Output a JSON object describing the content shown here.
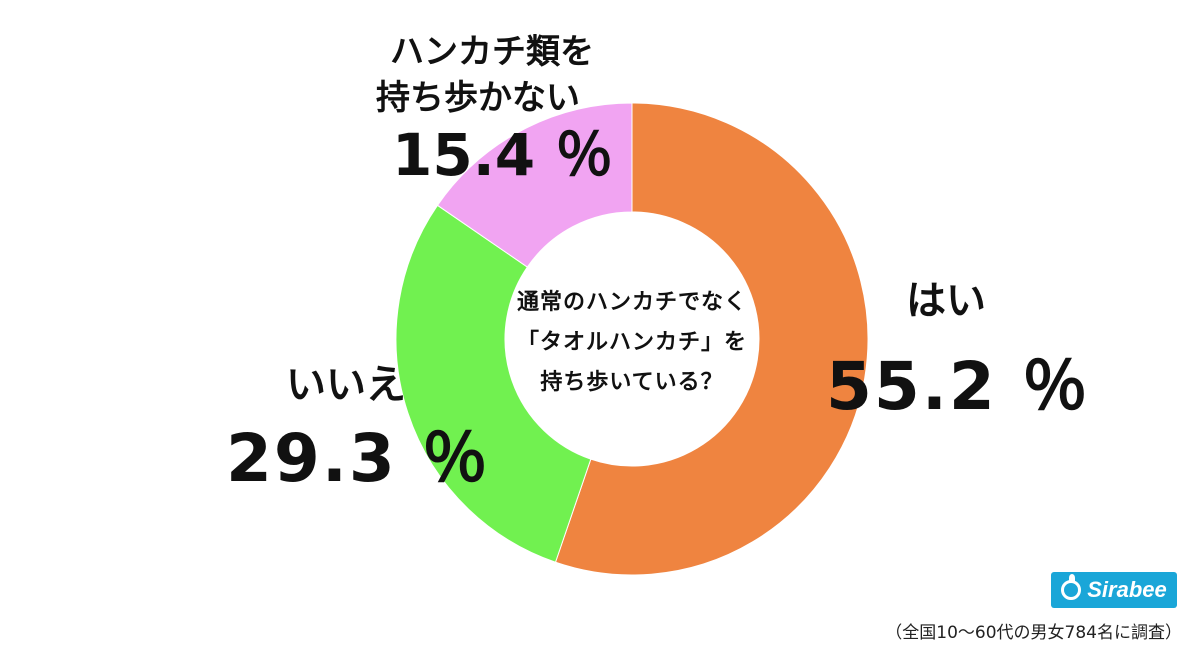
{
  "chart_data": {
    "type": "pie",
    "style": "donut",
    "center_lines": [
      "通常のハンカチでなく",
      "「タオルハンカチ」を",
      "持ち歩いている？"
    ],
    "slices": [
      {
        "label": "はい",
        "label_lines": [
          "はい"
        ],
        "value": 55.2,
        "display": "55.2 ％",
        "color": "#ef8440"
      },
      {
        "label": "いいえ",
        "label_lines": [
          "いいえ"
        ],
        "value": 29.3,
        "display": "29.3 ％",
        "color": "#71f150"
      },
      {
        "label": "ハンカチ類を持ち歩かない",
        "label_lines": [
          "ハンカチ類を",
          "持ち歩かない"
        ],
        "value": 15.4,
        "display": "15.4 ％",
        "color": "#f1a4f2"
      }
    ],
    "start_angle": "top",
    "direction": "clockwise"
  },
  "logo_text": "Sirabee",
  "survey_note": "（全国10〜60代の男女784名に調査）"
}
